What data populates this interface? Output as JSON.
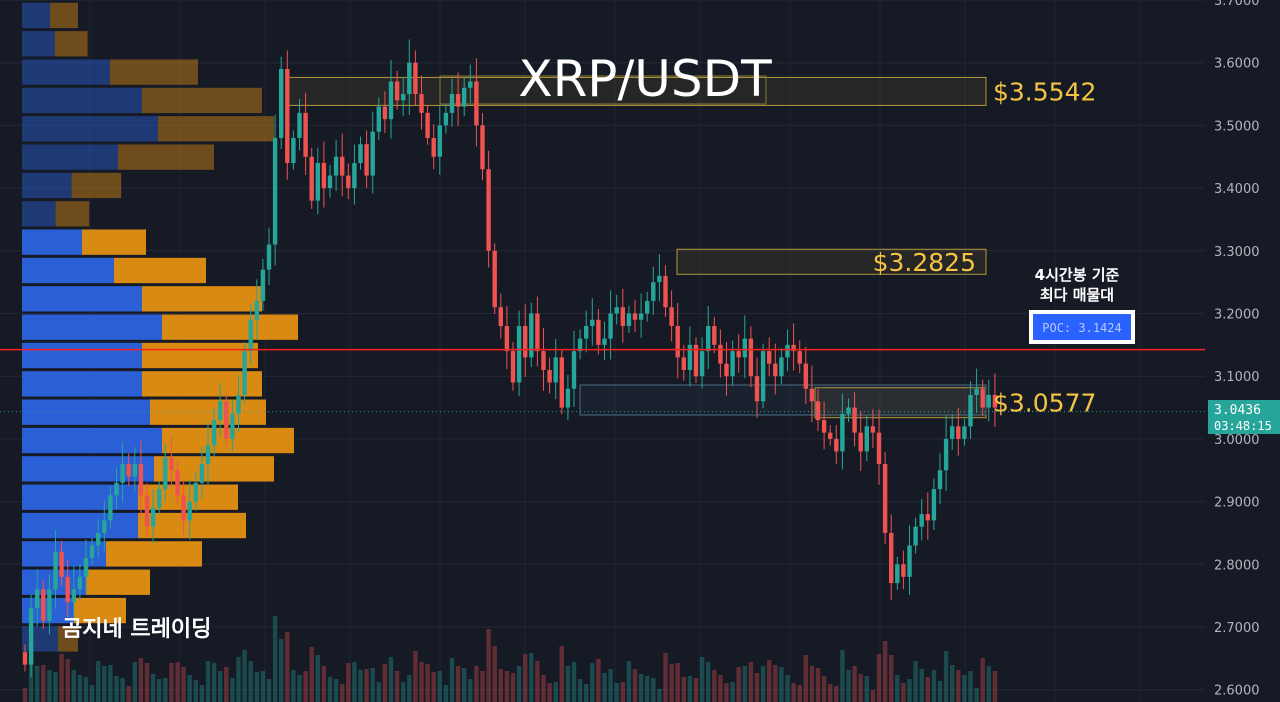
{
  "colors": {
    "background": "#161a25",
    "up": "#26a69a",
    "down": "#ef5350",
    "poc_line": "#ff1f1f",
    "level_text": "#f5c542",
    "vp_buy": "#2a5fd6",
    "vp_sell": "#d98a12",
    "price_tag": "#26a69a",
    "poc_box": "#2962ff"
  },
  "chart_data": {
    "type": "candlestick",
    "title": "XRP/USDT",
    "ylim": [
      2.58,
      3.7
    ],
    "y_ticks": [
      "3.7000",
      "3.6000",
      "3.5000",
      "3.4000",
      "3.3000",
      "3.2000",
      "3.1000",
      "3.0000",
      "2.9000",
      "2.8000",
      "2.7000",
      "2.6000"
    ],
    "y_tick_values": [
      3.7,
      3.6,
      3.5,
      3.4,
      3.3,
      3.2,
      3.1,
      3.0,
      2.9,
      2.8,
      2.7,
      2.6
    ],
    "grid": true,
    "current_price": {
      "value": 3.0436,
      "label": "3.0436",
      "countdown": "03:48:15"
    },
    "levels": [
      {
        "label": "$3.5542",
        "value": 3.5542,
        "x_from": 286,
        "x_to": 986
      },
      {
        "label": "$3.2825",
        "value": 3.2825,
        "x_from": 677,
        "x_to": 986
      },
      {
        "label": "$3.0577",
        "value": 3.0577,
        "x_from": 815,
        "x_to": 986
      }
    ],
    "poc": {
      "value": 3.1424,
      "label": "POC: 3.1424",
      "note_line1": "4시간봉 기준",
      "note_line2": "최다 매물대"
    },
    "volume_profile": {
      "bin_size": 0.0452,
      "bins": [
        {
          "low": 3.6528,
          "buy": 35,
          "sell": 35,
          "dim": true
        },
        {
          "low": 3.6076,
          "buy": 41,
          "sell": 41,
          "dim": true
        },
        {
          "low": 3.5624,
          "buy": 110,
          "sell": 110,
          "dim": true
        },
        {
          "low": 3.5172,
          "buy": 150,
          "sell": 150,
          "dim": true
        },
        {
          "low": 3.472,
          "buy": 170,
          "sell": 145,
          "dim": true
        },
        {
          "low": 3.4268,
          "buy": 120,
          "sell": 120,
          "dim": true
        },
        {
          "low": 3.3816,
          "buy": 62,
          "sell": 62,
          "dim": true
        },
        {
          "low": 3.3364,
          "buy": 42,
          "sell": 42,
          "dim": true
        },
        {
          "low": 3.2912,
          "buy": 75,
          "sell": 80
        },
        {
          "low": 3.246,
          "buy": 115,
          "sell": 115
        },
        {
          "low": 3.2008,
          "buy": 150,
          "sell": 150
        },
        {
          "low": 3.1556,
          "buy": 175,
          "sell": 170
        },
        {
          "low": 3.1104,
          "buy": 150,
          "sell": 145
        },
        {
          "low": 3.0652,
          "buy": 150,
          "sell": 150
        },
        {
          "low": 3.02,
          "buy": 160,
          "sell": 145
        },
        {
          "low": 2.9748,
          "buy": 175,
          "sell": 165
        },
        {
          "low": 2.9296,
          "buy": 165,
          "sell": 150
        },
        {
          "low": 2.8844,
          "buy": 145,
          "sell": 125
        },
        {
          "low": 2.8392,
          "buy": 145,
          "sell": 135
        },
        {
          "low": 2.794,
          "buy": 105,
          "sell": 120
        },
        {
          "low": 2.7488,
          "buy": 80,
          "sell": 80
        },
        {
          "low": 2.7036,
          "buy": 65,
          "sell": 65
        },
        {
          "low": 2.6584,
          "buy": 45,
          "sell": 25,
          "dim": true
        }
      ]
    },
    "candles": {
      "series": [
        {
          "name": "",
          "values": [
            2.64,
            2.73,
            2.76,
            2.71,
            2.76,
            2.82,
            2.78,
            2.74,
            2.76,
            2.78,
            2.81,
            2.83,
            2.85,
            2.87,
            2.91,
            2.93,
            2.96,
            2.94,
            2.96,
            2.91,
            2.86,
            2.89,
            2.92,
            2.97,
            2.95,
            2.91,
            2.87,
            2.9,
            2.93,
            2.96,
            2.99,
            3.03,
            3.06,
            3.0,
            3.04,
            3.07,
            3.14,
            3.19,
            3.22,
            3.27,
            3.31,
            3.48,
            3.59,
            3.44,
            3.48,
            3.52,
            3.45,
            3.38,
            3.44,
            3.4,
            3.42,
            3.45,
            3.42,
            3.4,
            3.44,
            3.47,
            3.42,
            3.49,
            3.53,
            3.51,
            3.57,
            3.54,
            3.55,
            3.6,
            3.55,
            3.52,
            3.48,
            3.45,
            3.5,
            3.52,
            3.55,
            3.53,
            3.56,
            3.57,
            3.5,
            3.43,
            3.3,
            3.21,
            3.18,
            3.14,
            3.09,
            3.18,
            3.13,
            3.2,
            3.14,
            3.11,
            3.09,
            3.13,
            3.05,
            3.08,
            3.14,
            3.16,
            3.18,
            3.19,
            3.15,
            3.16,
            3.2,
            3.21,
            3.18,
            3.2,
            3.19,
            3.2,
            3.22,
            3.25,
            3.26,
            3.21,
            3.18,
            3.13,
            3.11,
            3.15,
            3.1,
            3.14,
            3.18,
            3.15,
            3.12,
            3.1,
            3.14,
            3.13,
            3.16,
            3.1,
            3.06,
            3.14,
            3.12,
            3.1,
            3.13,
            3.15,
            3.14,
            3.12,
            3.08,
            3.06,
            3.03,
            3.01,
            3.0,
            2.98,
            3.04,
            3.05,
            3.01,
            2.98,
            3.02,
            3.01,
            2.96,
            2.85,
            2.77,
            2.8,
            2.78,
            2.83,
            2.86,
            2.88,
            2.87,
            2.92,
            2.95,
            3.0,
            3.02,
            3.0,
            3.02,
            3.07,
            3.08,
            3.05,
            3.07,
            3.05
          ]
        }
      ],
      "open_first": 2.66,
      "x_from": 25,
      "x_step": 6.1
    }
  },
  "labels": {
    "title": "XRP/USDT",
    "watermark": "곰지네 트레이딩"
  }
}
